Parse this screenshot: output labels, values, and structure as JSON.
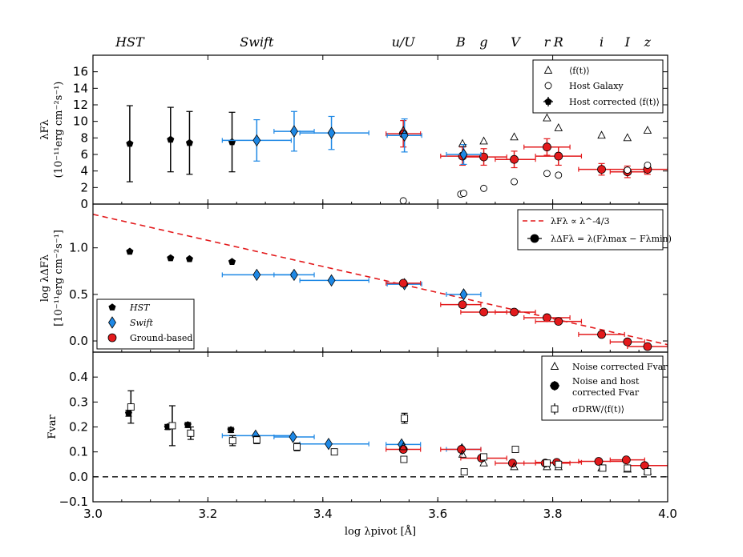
{
  "chart_data": {
    "type": "scatter",
    "xlabel": "log λpivot [Å]",
    "xlim": [
      3.0,
      4.0
    ],
    "xticks": [
      3.0,
      3.2,
      3.4,
      3.6,
      3.8,
      4.0
    ],
    "xtick_labels": [
      "3.0",
      "3.2",
      "3.4",
      "3.6",
      "3.8",
      "4.0"
    ],
    "band_labels": [
      {
        "text": "HST",
        "x": 3.064
      },
      {
        "text": "Swift",
        "x": 3.285
      },
      {
        "text": "u/U",
        "x": 3.54
      },
      {
        "text": "B",
        "x": 3.64
      },
      {
        "text": "g",
        "x": 3.68
      },
      {
        "text": "V",
        "x": 3.735
      },
      {
        "text": "r",
        "x": 3.79
      },
      {
        "text": "R",
        "x": 3.81
      },
      {
        "text": "i",
        "x": 3.885
      },
      {
        "text": "I",
        "x": 3.93
      },
      {
        "text": "z",
        "x": 3.965
      }
    ],
    "panels": [
      {
        "id": "top",
        "ylabel_line1": "λFλ",
        "ylabel_line2": "(10⁻¹¹erg cm⁻²s⁻¹)",
        "ylim": [
          0,
          18
        ],
        "yticks": [
          0,
          2,
          4,
          6,
          8,
          10,
          12,
          14,
          16
        ],
        "ytick_labels": [
          "0",
          "2",
          "4",
          "6",
          "8",
          "10",
          "12",
          "14",
          "16"
        ],
        "legend": [
          "⟨f(t)⟩",
          "Host Galaxy",
          "Host corrected ⟨f(t)⟩"
        ],
        "series": [
          {
            "name": "HST",
            "color": "#000000",
            "marker": "pentagon",
            "points": [
              {
                "x": 3.064,
                "y": 7.3,
                "yerr": 4.6
              },
              {
                "x": 3.135,
                "y": 7.8,
                "yerr": 3.9
              },
              {
                "x": 3.168,
                "y": 7.4,
                "yerr": 3.8
              },
              {
                "x": 3.242,
                "y": 7.5,
                "yerr": 3.6
              }
            ]
          },
          {
            "name": "Swift",
            "color": "#1e88e5",
            "marker": "diamond",
            "points": [
              {
                "x": 3.285,
                "y": 7.7,
                "yerr": 2.5,
                "xlo": 3.225,
                "xhi": 3.345
              },
              {
                "x": 3.35,
                "y": 8.8,
                "yerr": 2.4,
                "xlo": 3.315,
                "xhi": 3.385
              },
              {
                "x": 3.415,
                "y": 8.6,
                "yerr": 2.0,
                "xlo": 3.36,
                "xhi": 3.48
              }
            ]
          },
          {
            "name": "Ground-based",
            "color": "#e31a1c",
            "marker": "circle",
            "points": [
              {
                "x": 3.54,
                "y": 8.5,
                "yerr": 1.6,
                "xlo": 3.51,
                "xhi": 3.57
              },
              {
                "x": 3.643,
                "y": 5.8,
                "yerr": 1.1,
                "xlo": 3.605,
                "xhi": 3.675
              },
              {
                "x": 3.68,
                "y": 5.7,
                "yerr": 1.0,
                "xlo": 3.64,
                "xhi": 3.72
              },
              {
                "x": 3.733,
                "y": 5.4,
                "yerr": 1.0,
                "xlo": 3.7,
                "xhi": 3.77
              },
              {
                "x": 3.79,
                "y": 6.9,
                "yerr": 1.0,
                "xlo": 3.75,
                "xhi": 3.83
              },
              {
                "x": 3.81,
                "y": 5.8,
                "yerr": 1.1,
                "xlo": 3.77,
                "xhi": 3.85
              },
              {
                "x": 3.885,
                "y": 4.2,
                "yerr": 0.7,
                "xlo": 3.845,
                "xhi": 3.925
              },
              {
                "x": 3.93,
                "y": 3.9,
                "yerr": 0.7,
                "xlo": 3.9,
                "xhi": 3.96
              },
              {
                "x": 3.965,
                "y": 4.2,
                "yerr": 0.6,
                "xlo": 3.93,
                "xhi": 4.0
              }
            ]
          },
          {
            "name": "Swift u",
            "color": "#1e88e5",
            "marker": "diamond",
            "points": [
              {
                "x": 3.542,
                "y": 8.3,
                "yerr": 2.0,
                "xlo": 3.512,
                "xhi": 3.572
              },
              {
                "x": 3.645,
                "y": 6.0,
                "yerr": 1.2,
                "xlo": 3.615,
                "xhi": 3.675
              }
            ]
          },
          {
            "name": "⟨f(t)⟩",
            "color": "#000000",
            "marker": "triangle-open",
            "points": [
              {
                "x": 3.54,
                "y": 8.9
              },
              {
                "x": 3.643,
                "y": 7.3
              },
              {
                "x": 3.68,
                "y": 7.6
              },
              {
                "x": 3.733,
                "y": 8.1
              },
              {
                "x": 3.79,
                "y": 10.4
              },
              {
                "x": 3.81,
                "y": 9.2
              },
              {
                "x": 3.885,
                "y": 8.3
              },
              {
                "x": 3.93,
                "y": 8.0
              },
              {
                "x": 3.965,
                "y": 8.9
              }
            ]
          },
          {
            "name": "Host Galaxy",
            "color": "#000000",
            "marker": "circle-open",
            "points": [
              {
                "x": 3.54,
                "y": 0.4
              },
              {
                "x": 3.64,
                "y": 1.2
              },
              {
                "x": 3.645,
                "y": 1.3
              },
              {
                "x": 3.68,
                "y": 1.9
              },
              {
                "x": 3.733,
                "y": 2.7
              },
              {
                "x": 3.79,
                "y": 3.7
              },
              {
                "x": 3.81,
                "y": 3.5
              },
              {
                "x": 3.93,
                "y": 4.1
              },
              {
                "x": 3.965,
                "y": 4.7
              }
            ]
          }
        ]
      },
      {
        "id": "middle",
        "ylabel_line1": "log λΔFλ",
        "ylabel_line2": "[10⁻¹¹erg cm⁻²s⁻¹]",
        "ylim": [
          -0.12,
          1.47
        ],
        "yticks": [
          0.0,
          0.5,
          1.0
        ],
        "ytick_labels": [
          "0.0",
          "0.5",
          "1.0"
        ],
        "legend": [
          "λFλ ∝ λ^-4/3",
          "λΔFλ = λ(Fλmax − Fλmin)"
        ],
        "legend2": [
          "HST",
          "Swift",
          "Ground-based"
        ],
        "model_line": {
          "x": [
            3.0,
            4.0
          ],
          "y": [
            1.36,
            -0.04
          ]
        },
        "series": [
          {
            "name": "HST",
            "color": "#000000",
            "marker": "pentagon",
            "points": [
              {
                "x": 3.064,
                "y": 0.96
              },
              {
                "x": 3.135,
                "y": 0.89
              },
              {
                "x": 3.168,
                "y": 0.88
              },
              {
                "x": 3.242,
                "y": 0.85
              }
            ]
          },
          {
            "name": "Swift",
            "color": "#1e88e5",
            "marker": "diamond",
            "points": [
              {
                "x": 3.285,
                "y": 0.71,
                "xlo": 3.225,
                "xhi": 3.345
              },
              {
                "x": 3.35,
                "y": 0.71,
                "xlo": 3.315,
                "xhi": 3.385
              },
              {
                "x": 3.415,
                "y": 0.65,
                "xlo": 3.36,
                "xhi": 3.48
              },
              {
                "x": 3.542,
                "y": 0.61,
                "xlo": 3.512,
                "xhi": 3.572
              },
              {
                "x": 3.645,
                "y": 0.5,
                "xlo": 3.615,
                "xhi": 3.675
              }
            ]
          },
          {
            "name": "Ground-based",
            "color": "#e31a1c",
            "marker": "circle",
            "points": [
              {
                "x": 3.54,
                "y": 0.62,
                "xlo": 3.51,
                "xhi": 3.57
              },
              {
                "x": 3.643,
                "y": 0.39,
                "xlo": 3.605,
                "xhi": 3.675
              },
              {
                "x": 3.68,
                "y": 0.31,
                "xlo": 3.64,
                "xhi": 3.72
              },
              {
                "x": 3.733,
                "y": 0.31,
                "xlo": 3.7,
                "xhi": 3.77
              },
              {
                "x": 3.79,
                "y": 0.25,
                "xlo": 3.75,
                "xhi": 3.83
              },
              {
                "x": 3.81,
                "y": 0.21,
                "xlo": 3.77,
                "xhi": 3.85
              },
              {
                "x": 3.885,
                "y": 0.07,
                "xlo": 3.845,
                "xhi": 3.925
              },
              {
                "x": 3.93,
                "y": -0.01,
                "xlo": 3.9,
                "xhi": 3.96
              },
              {
                "x": 3.965,
                "y": -0.06,
                "xlo": 3.93,
                "xhi": 4.0
              }
            ]
          }
        ]
      },
      {
        "id": "bottom",
        "ylabel_line1": "Fvar",
        "ylim": [
          -0.1,
          0.5
        ],
        "yticks": [
          -0.1,
          0.0,
          0.1,
          0.2,
          0.3,
          0.4
        ],
        "ytick_labels": [
          "−0.1",
          "0.0",
          "0.1",
          "0.2",
          "0.3",
          "0.4"
        ],
        "legend": [
          "Noise corrected Fvar",
          "Noise and host",
          "corrected Fvar",
          "σDRW/⟨f(t)⟩"
        ],
        "zero_line": 0.0,
        "series": [
          {
            "name": "HST",
            "color": "#000000",
            "marker": "pentagon",
            "points": [
              {
                "x": 3.062,
                "y": 0.255,
                "yerr": 0.012
              },
              {
                "x": 3.13,
                "y": 0.2,
                "yerr": 0.01
              },
              {
                "x": 3.165,
                "y": 0.208,
                "yerr": 0.01
              },
              {
                "x": 3.24,
                "y": 0.188,
                "yerr": 0.01
              }
            ]
          },
          {
            "name": "Swift",
            "color": "#1e88e5",
            "marker": "diamond",
            "points": [
              {
                "x": 3.283,
                "y": 0.165,
                "xlo": 3.225,
                "xhi": 3.345
              },
              {
                "x": 3.348,
                "y": 0.16,
                "xlo": 3.315,
                "xhi": 3.385
              },
              {
                "x": 3.41,
                "y": 0.132,
                "xlo": 3.36,
                "xhi": 3.48
              },
              {
                "x": 3.537,
                "y": 0.13,
                "xlo": 3.51,
                "xhi": 3.57
              },
              {
                "x": 3.642,
                "y": 0.11,
                "xlo": 3.615,
                "xhi": 3.675
              }
            ]
          },
          {
            "name": "Ground-based",
            "color": "#e31a1c",
            "marker": "circle",
            "points": [
              {
                "x": 3.54,
                "y": 0.11,
                "xlo": 3.51,
                "xhi": 3.57
              },
              {
                "x": 3.641,
                "y": 0.11,
                "xlo": 3.605,
                "xhi": 3.675
              },
              {
                "x": 3.676,
                "y": 0.075,
                "xlo": 3.64,
                "xhi": 3.72
              },
              {
                "x": 3.73,
                "y": 0.055,
                "xlo": 3.7,
                "xhi": 3.77
              },
              {
                "x": 3.787,
                "y": 0.055,
                "xlo": 3.75,
                "xhi": 3.83
              },
              {
                "x": 3.807,
                "y": 0.058,
                "xlo": 3.77,
                "xhi": 3.85
              },
              {
                "x": 3.88,
                "y": 0.062,
                "xlo": 3.845,
                "xhi": 3.925
              },
              {
                "x": 3.928,
                "y": 0.068,
                "xlo": 3.9,
                "xhi": 3.96
              },
              {
                "x": 3.96,
                "y": 0.045,
                "xlo": 3.93,
                "xhi": 4.0
              }
            ]
          },
          {
            "name": "Noise corrected Fvar",
            "color": "#000000",
            "marker": "triangle-open",
            "points": [
              {
                "x": 3.54,
                "y": 0.12
              },
              {
                "x": 3.643,
                "y": 0.09
              },
              {
                "x": 3.68,
                "y": 0.055
              },
              {
                "x": 3.733,
                "y": 0.04
              },
              {
                "x": 3.79,
                "y": 0.04
              },
              {
                "x": 3.81,
                "y": 0.04
              },
              {
                "x": 3.885,
                "y": 0.035
              },
              {
                "x": 3.93,
                "y": 0.03
              },
              {
                "x": 3.965,
                "y": 0.022
              }
            ]
          },
          {
            "name": "σDRW/⟨f(t)⟩",
            "color": "#000000",
            "marker": "square-open",
            "points": [
              {
                "x": 3.066,
                "y": 0.28,
                "yerr": 0.065
              },
              {
                "x": 3.138,
                "y": 0.205,
                "yerr": 0.08
              },
              {
                "x": 3.17,
                "y": 0.175,
                "yerr": 0.025
              },
              {
                "x": 3.243,
                "y": 0.145,
                "yerr": 0.02
              },
              {
                "x": 3.285,
                "y": 0.148,
                "yerr": 0.015
              },
              {
                "x": 3.355,
                "y": 0.12,
                "yerr": 0.015
              },
              {
                "x": 3.42,
                "y": 0.1,
                "yerr": 0.01
              },
              {
                "x": 3.542,
                "y": 0.235,
                "yerr": 0.02
              },
              {
                "x": 3.541,
                "y": 0.07,
                "yerr": 0.01
              },
              {
                "x": 3.646,
                "y": 0.02,
                "yerr": 0.005
              },
              {
                "x": 3.68,
                "y": 0.08,
                "yerr": 0.01
              },
              {
                "x": 3.735,
                "y": 0.11,
                "yerr": 0.01
              },
              {
                "x": 3.79,
                "y": 0.055,
                "yerr": 0.01
              },
              {
                "x": 3.81,
                "y": 0.05,
                "yerr": 0.01
              },
              {
                "x": 3.887,
                "y": 0.035,
                "yerr": 0.005
              },
              {
                "x": 3.93,
                "y": 0.035,
                "yerr": 0.005
              },
              {
                "x": 3.965,
                "y": 0.02,
                "yerr": 0.005
              }
            ]
          }
        ]
      }
    ]
  }
}
